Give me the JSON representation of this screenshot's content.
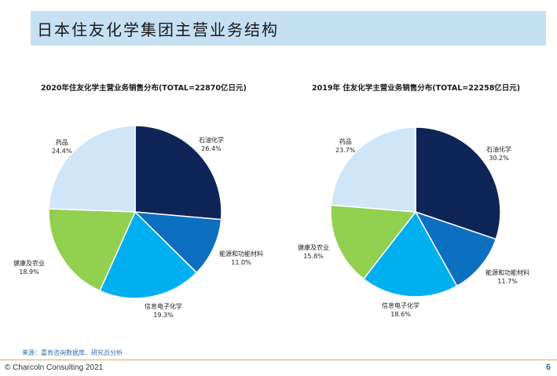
{
  "header": {
    "title": "日本住友化学集团主营业务结构"
  },
  "chart_data": [
    {
      "type": "pie",
      "title": "2020年住友化学主营业务销售分布(TOTAL=22870亿日元)",
      "slices": [
        {
          "label": "石油化学",
          "value": 26.4,
          "value_label": "26.4%",
          "color": "#0f2557"
        },
        {
          "label": "能源和功能材料",
          "value": 11.0,
          "value_label": "11.0%",
          "color": "#0d6fbf"
        },
        {
          "label": "信息电子化学",
          "value": 19.3,
          "value_label": "19.3%",
          "color": "#00aff0"
        },
        {
          "label": "健康及农业",
          "value": 18.9,
          "value_label": "18.9%",
          "color": "#92d050"
        },
        {
          "label": "药品",
          "value": 24.4,
          "value_label": "24.4%",
          "color": "#cfe6f8"
        }
      ]
    },
    {
      "type": "pie",
      "title": "2019年 住友化学主营业务销售分布(TOTAL=22258亿日元)",
      "slices": [
        {
          "label": "石油化学",
          "value": 30.2,
          "value_label": "30.2%",
          "color": "#0f2557"
        },
        {
          "label": "能源和功能材料",
          "value": 11.7,
          "value_label": "11.7%",
          "color": "#0d6fbf"
        },
        {
          "label": "信息电子化学",
          "value": 18.6,
          "value_label": "18.6%",
          "color": "#00aff0"
        },
        {
          "label": "健康及农业",
          "value": 15.8,
          "value_label": "15.8%",
          "color": "#92d050"
        },
        {
          "label": "药品",
          "value": 23.7,
          "value_label": "23.7%",
          "color": "#cfe6f8"
        }
      ]
    }
  ],
  "footer": {
    "source": "来源：嘉肯咨询数据库、研究员分析",
    "copyright": "© Charcoln Consulting 2021",
    "page_number": "6"
  }
}
